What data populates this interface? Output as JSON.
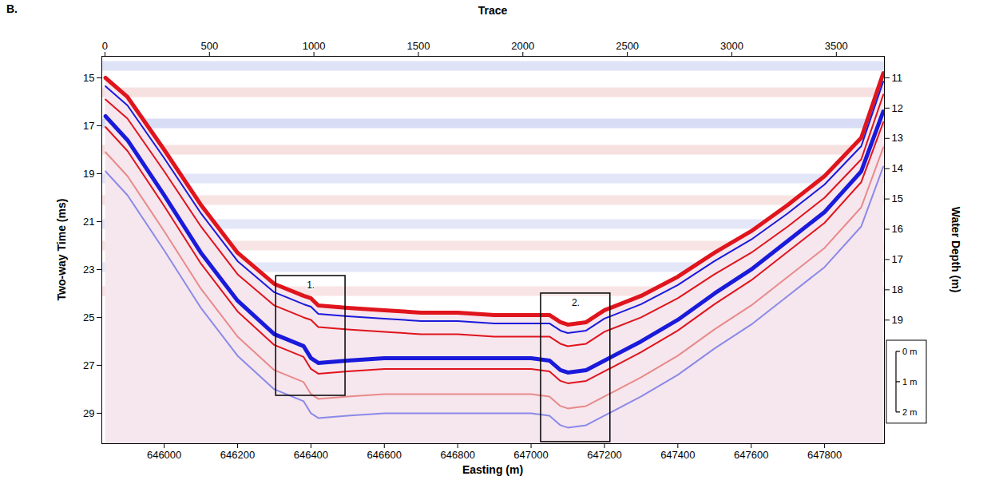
{
  "chart_data": {
    "type": "seismic_profile",
    "panel_label": "B.",
    "x_label": "Easting (m)",
    "y_label": "Two-way Time (ms)",
    "x2_label": "Trace",
    "y2_label": "Water Depth (m)",
    "xlim": [
      645830,
      647963
    ],
    "xticks": [
      646000,
      646200,
      646400,
      646600,
      646800,
      647000,
      647200,
      647400,
      647600,
      647800
    ],
    "x2lim": [
      -15,
      3730
    ],
    "x2ticks": [
      0,
      500,
      1000,
      1500,
      2000,
      2500,
      3000,
      3500
    ],
    "ylim": [
      14.1,
      30.27
    ],
    "yticks": [
      15,
      17,
      19,
      21,
      23,
      25,
      27,
      29
    ],
    "y2lim": [
      10.29,
      23.08
    ],
    "y2ticks": [
      11,
      12,
      13,
      14,
      15,
      16,
      17,
      18,
      19
    ],
    "x": [
      645840,
      645900,
      646000,
      646100,
      646200,
      646300,
      646380,
      646400,
      646420,
      646500,
      646600,
      646700,
      646800,
      646900,
      647000,
      647050,
      647080,
      647100,
      647150,
      647200,
      647300,
      647400,
      647500,
      647600,
      647700,
      647800,
      647900,
      647960
    ],
    "series": [
      {
        "color": "#e0141c",
        "line_style": "thick",
        "values": [
          15.0,
          15.8,
          18.0,
          20.3,
          22.3,
          23.6,
          24.1,
          24.2,
          24.5,
          24.6,
          24.7,
          24.8,
          24.8,
          24.9,
          24.9,
          24.9,
          25.2,
          25.3,
          25.2,
          24.7,
          24.1,
          23.3,
          22.3,
          21.4,
          20.3,
          19.1,
          17.5,
          14.8
        ]
      },
      {
        "color": "#1a1adb",
        "line_style": "thin",
        "values": [
          15.35,
          16.15,
          18.35,
          20.65,
          22.65,
          23.95,
          24.45,
          24.55,
          24.85,
          24.95,
          25.05,
          25.15,
          25.15,
          25.25,
          25.25,
          25.25,
          25.55,
          25.65,
          25.55,
          25.05,
          24.45,
          23.65,
          22.65,
          21.75,
          20.65,
          19.45,
          17.85,
          15.15
        ]
      },
      {
        "color": "#e0141c",
        "line_style": "thin",
        "values": [
          15.9,
          16.7,
          18.9,
          21.2,
          23.2,
          24.5,
          25.0,
          25.1,
          25.4,
          25.5,
          25.6,
          25.7,
          25.7,
          25.8,
          25.8,
          25.8,
          26.1,
          26.2,
          26.1,
          25.6,
          25.0,
          24.2,
          23.2,
          22.3,
          21.2,
          20.0,
          18.4,
          15.7
        ]
      },
      {
        "color": "#1a1adb",
        "line_style": "thick",
        "values": [
          16.6,
          17.6,
          19.9,
          22.3,
          24.3,
          25.7,
          26.2,
          26.7,
          26.9,
          26.8,
          26.7,
          26.7,
          26.7,
          26.7,
          26.7,
          26.8,
          27.2,
          27.3,
          27.2,
          26.8,
          26.0,
          25.1,
          24.0,
          23.0,
          21.8,
          20.6,
          18.9,
          16.4
        ]
      },
      {
        "color": "#e0141c",
        "line_style": "thin",
        "values": [
          17.05,
          18.05,
          20.35,
          22.75,
          24.75,
          26.15,
          26.65,
          27.15,
          27.35,
          27.25,
          27.15,
          27.15,
          27.15,
          27.15,
          27.15,
          27.25,
          27.65,
          27.75,
          27.65,
          27.25,
          26.45,
          25.55,
          24.45,
          23.45,
          22.25,
          21.05,
          19.35,
          16.85
        ]
      },
      {
        "color": "#e88a8a",
        "line_style": "thin",
        "values": [
          18.1,
          19.1,
          21.4,
          23.8,
          25.8,
          27.2,
          27.7,
          28.2,
          28.4,
          28.3,
          28.2,
          28.2,
          28.2,
          28.2,
          28.2,
          28.3,
          28.7,
          28.8,
          28.7,
          28.3,
          27.5,
          26.6,
          25.5,
          24.5,
          23.3,
          22.1,
          20.4,
          17.9
        ]
      },
      {
        "color": "#8a8ae8",
        "line_style": "thin",
        "values": [
          18.9,
          19.9,
          22.2,
          24.6,
          26.6,
          28.0,
          28.5,
          29.0,
          29.2,
          29.1,
          29.0,
          29.0,
          29.0,
          29.0,
          29.0,
          29.1,
          29.5,
          29.6,
          29.5,
          29.1,
          28.3,
          27.4,
          26.3,
          25.3,
          24.1,
          22.9,
          21.2,
          18.7
        ]
      }
    ],
    "water_column_bands": {
      "y": [
        14.5,
        15.6,
        16.9,
        18.0,
        19.2,
        20.1,
        21.1,
        22.0,
        22.9,
        23.9
      ],
      "colors": [
        "#dfe3f7",
        "#f7e0e0",
        "#d8ddf5",
        "#f7e0e0",
        "#e2e6f8",
        "#f8e3e3",
        "#e4e7f8",
        "#f8e4e4",
        "#e4e7f8",
        "#f8e4e4"
      ]
    },
    "boxes": [
      {
        "label": "1.",
        "x": [
          646305,
          646494
        ],
        "y": [
          23.27,
          28.27
        ]
      },
      {
        "label": "2.",
        "x": [
          647027,
          647216
        ],
        "y": [
          24.0,
          30.2
        ]
      }
    ],
    "scale_bar": {
      "labels": [
        "0 m",
        "1 m",
        "2 m"
      ],
      "values": [
        0,
        1,
        2
      ]
    }
  }
}
